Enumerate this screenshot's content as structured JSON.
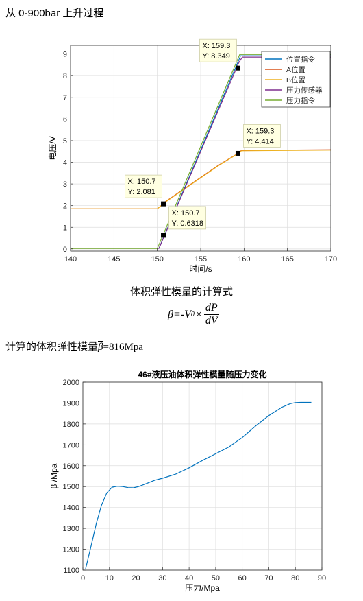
{
  "heading": "从 0-900bar 上升过程",
  "formula": {
    "title": "体积弹性模量的计算式",
    "lhs": "β=-V",
    "subscript": "0",
    "times": "×",
    "numerator": "dP",
    "denominator": "dV"
  },
  "result": {
    "prefix": "计算的体积弹性模量",
    "symbol": "β",
    "value": "=816Mpa"
  },
  "chart_data": [
    {
      "type": "line",
      "title": "",
      "xlabel": "时间/s",
      "ylabel": "电压/V",
      "xlim": [
        140,
        170
      ],
      "ylim": [
        -0.1,
        9.4
      ],
      "xticks": [
        140,
        145,
        150,
        155,
        160,
        165,
        170
      ],
      "yticks": [
        0,
        1,
        2,
        3,
        4,
        5,
        6,
        7,
        8,
        9
      ],
      "grid": true,
      "legend_position": "top-right",
      "series": [
        {
          "name": "位置指令",
          "color": "#0072bd",
          "x": [
            140,
            150.2,
            159.6,
            170
          ],
          "y": [
            0.04,
            0.04,
            8.92,
            8.92
          ]
        },
        {
          "name": "A位置",
          "color": "#d95319",
          "x": [
            140,
            150.0,
            151.0,
            153.0,
            155.0,
            157.0,
            159.3,
            159.7,
            170
          ],
          "y": [
            1.85,
            1.85,
            2.2,
            2.75,
            3.3,
            3.85,
            4.414,
            4.55,
            4.58
          ]
        },
        {
          "name": "B位置",
          "color": "#edb120",
          "x": [
            140,
            150.0,
            151.0,
            153.0,
            155.0,
            157.0,
            159.3,
            159.7,
            170
          ],
          "y": [
            1.85,
            1.85,
            2.18,
            2.73,
            3.28,
            3.83,
            4.4,
            4.53,
            4.56
          ]
        },
        {
          "name": "压力传感器",
          "color": "#7e2f8e",
          "x": [
            140,
            150.2,
            159.4,
            159.8,
            170
          ],
          "y": [
            0.03,
            0.03,
            8.6,
            8.86,
            8.86
          ]
        },
        {
          "name": "压力指令",
          "color": "#77ac30",
          "x": [
            140,
            150.0,
            159.5,
            170
          ],
          "y": [
            0.02,
            0.02,
            8.98,
            8.98
          ]
        }
      ],
      "datatips": [
        {
          "text_x": "X: 159.3",
          "text_y": "Y: 8.349",
          "x": 159.3,
          "y": 8.349
        },
        {
          "text_x": "X: 159.3",
          "text_y": "Y: 4.414",
          "x": 159.3,
          "y": 4.414
        },
        {
          "text_x": "X: 150.7",
          "text_y": "Y: 2.081",
          "x": 150.7,
          "y": 2.081
        },
        {
          "text_x": "X: 150.7",
          "text_y": "Y: 0.6318",
          "x": 150.7,
          "y": 0.6318
        }
      ]
    },
    {
      "type": "line",
      "title": "46#液压油体积弹性模量随压力变化",
      "xlabel": "压力/Mpa",
      "ylabel": "β /Mpa",
      "xlim": [
        0,
        90
      ],
      "ylim": [
        1100,
        2000
      ],
      "xticks": [
        0,
        10,
        20,
        30,
        40,
        50,
        60,
        70,
        80,
        90
      ],
      "yticks": [
        1100,
        1200,
        1300,
        1400,
        1500,
        1600,
        1700,
        1800,
        1900,
        2000
      ],
      "grid": true,
      "series": [
        {
          "name": "",
          "color": "#0072bd",
          "x": [
            1,
            3,
            5,
            7,
            9,
            11,
            13,
            15,
            17,
            19,
            21,
            24,
            27,
            30,
            35,
            40,
            45,
            50,
            55,
            60,
            65,
            70,
            75,
            78,
            80,
            82,
            84,
            86
          ],
          "y": [
            1105,
            1210,
            1320,
            1410,
            1470,
            1497,
            1502,
            1500,
            1495,
            1494,
            1500,
            1515,
            1530,
            1540,
            1560,
            1590,
            1625,
            1657,
            1690,
            1735,
            1790,
            1840,
            1880,
            1897,
            1902,
            1903,
            1903,
            1903
          ]
        }
      ]
    }
  ]
}
